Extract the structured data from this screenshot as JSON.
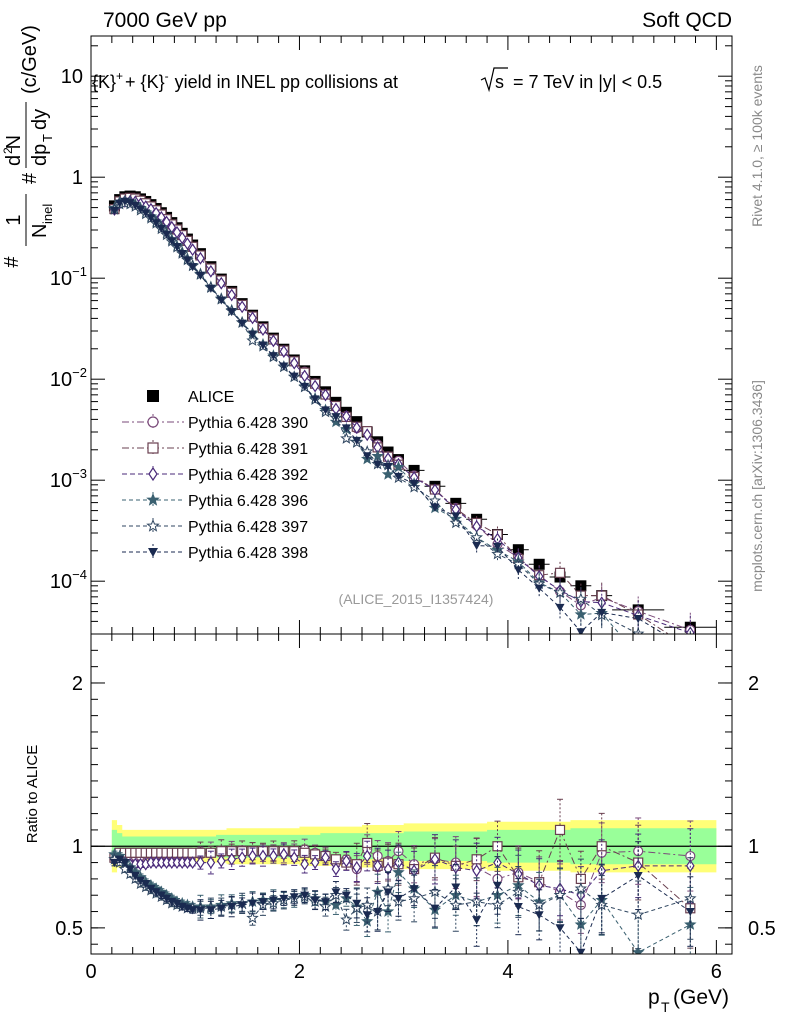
{
  "header": {
    "left_label": "7000 GeV pp",
    "right_label": "Soft QCD"
  },
  "side": {
    "rivet_label": "Rivet 4.1.0, ≥ 100k events",
    "source_label": "mcplots.cern.ch [arXiv:1306.3436]"
  },
  "chart_data": [
    {
      "panel": "main",
      "type": "scatter",
      "title": "{K}+ + {K}- yield in INEL pp collisions at √s = 7 TeV in |y| < 0.5",
      "title_parts": {
        "k1": "{K}",
        "sup1": "+",
        "plus": "+ {K}",
        "sup2": "-",
        "rest": "yield in INEL pp collisions at",
        "sqrt_s": "s",
        "tail": "= 7 TeV in |y| < 0.5"
      },
      "ylabel": "1/N_inel d²N/dp_T dy (c/GeV)",
      "ylabel_parts": {
        "n": "N",
        "inel": "inel",
        "dN": "d N",
        "two": "2",
        "dpt": "dp",
        "T": "T",
        "dy": "dy",
        "units": "(c/GeV)",
        "one": "1",
        "hash": "#"
      },
      "yscale": "log",
      "ylim": [
        3e-05,
        25
      ],
      "yticks": [
        {
          "v": 0.0001,
          "base": "10",
          "exp": "−4"
        },
        {
          "v": 0.001,
          "base": "10",
          "exp": "−3"
        },
        {
          "v": 0.01,
          "base": "10",
          "exp": "−2"
        },
        {
          "v": 0.1,
          "base": "10",
          "exp": "−1"
        },
        {
          "v": 1,
          "base": "1",
          "exp": ""
        },
        {
          "v": 10,
          "base": "10",
          "exp": ""
        }
      ],
      "xlim": [
        0,
        6.15
      ],
      "analysis_tag": "(ALICE_2015_I1357424)",
      "x": [
        0.225,
        0.275,
        0.325,
        0.375,
        0.425,
        0.475,
        0.525,
        0.575,
        0.625,
        0.675,
        0.725,
        0.775,
        0.825,
        0.875,
        0.925,
        0.975,
        1.05,
        1.15,
        1.25,
        1.35,
        1.45,
        1.55,
        1.65,
        1.75,
        1.85,
        1.95,
        2.05,
        2.15,
        2.25,
        2.35,
        2.45,
        2.55,
        2.65,
        2.75,
        2.85,
        2.95,
        3.1,
        3.3,
        3.5,
        3.7,
        3.9,
        4.1,
        4.3,
        4.5,
        4.7,
        4.9,
        5.25,
        5.75
      ],
      "data": {
        "name": "ALICE",
        "color": "#000000",
        "y": [
          0.52,
          0.6,
          0.64,
          0.65,
          0.64,
          0.61,
          0.575,
          0.535,
          0.49,
          0.445,
          0.4,
          0.355,
          0.316,
          0.278,
          0.244,
          0.213,
          0.175,
          0.13,
          0.098,
          0.074,
          0.056,
          0.043,
          0.033,
          0.0255,
          0.0198,
          0.0155,
          0.0121,
          0.0095,
          0.0075,
          0.0059,
          0.0047,
          0.0038,
          0.003,
          0.0024,
          0.0019,
          0.0016,
          0.00125,
          0.00087,
          0.00059,
          0.00041,
          0.00029,
          0.000205,
          0.000147,
          0.00011,
          9e-05,
          7.2e-05,
          5.2e-05,
          3.5e-05
        ]
      },
      "series": [
        {
          "name": "Pythia 6.428 390",
          "color": "#7a4a7a",
          "marker": "circle-open",
          "dash": "7,3,2,3",
          "ratio": [
            0.92,
            0.94,
            0.94,
            0.94,
            0.94,
            0.94,
            0.95,
            0.95,
            0.95,
            0.95,
            0.95,
            0.95,
            0.95,
            0.95,
            0.95,
            0.95,
            0.95,
            0.96,
            0.96,
            0.96,
            0.96,
            0.96,
            0.96,
            0.96,
            0.96,
            0.97,
            0.98,
            0.96,
            0.94,
            0.9,
            0.92,
            0.86,
            0.98,
            0.94,
            0.91,
            0.97,
            0.89,
            0.92,
            0.9,
            0.87,
            0.8,
            0.84,
            0.78,
            0.72,
            0.64,
            0.96,
            0.97,
            0.94
          ]
        },
        {
          "name": "Pythia 6.428 391",
          "color": "#6a4050",
          "marker": "square-open",
          "dash": "7,3,2,3",
          "ratio": [
            0.93,
            0.96,
            0.96,
            0.96,
            0.96,
            0.96,
            0.96,
            0.96,
            0.96,
            0.96,
            0.96,
            0.96,
            0.96,
            0.96,
            0.96,
            0.96,
            0.96,
            0.96,
            0.97,
            0.97,
            0.97,
            0.97,
            0.97,
            0.97,
            0.97,
            0.97,
            0.96,
            0.95,
            0.94,
            0.92,
            0.9,
            0.89,
            1.02,
            0.88,
            0.9,
            0.89,
            0.86,
            0.93,
            0.88,
            0.92,
            1.0,
            0.81,
            0.78,
            1.1,
            0.8,
            1.0,
            0.9,
            0.62
          ]
        },
        {
          "name": "Pythia 6.428 392",
          "color": "#4a2a7a",
          "marker": "diamond-open",
          "dash": "5,3",
          "ratio": [
            0.92,
            0.92,
            0.9,
            0.89,
            0.89,
            0.89,
            0.89,
            0.9,
            0.9,
            0.9,
            0.9,
            0.9,
            0.9,
            0.9,
            0.9,
            0.9,
            0.9,
            0.9,
            0.91,
            0.92,
            0.93,
            0.94,
            0.94,
            0.94,
            0.95,
            0.93,
            0.89,
            0.9,
            0.93,
            0.86,
            0.91,
            0.87,
            0.94,
            0.88,
            0.86,
            0.9,
            0.85,
            0.92,
            0.87,
            0.85,
            0.9,
            0.83,
            0.76,
            0.74,
            0.7,
            0.85,
            0.88,
            0.88
          ]
        },
        {
          "name": "Pythia 6.428 396",
          "color": "#3a6070",
          "marker": "star-filled",
          "dash": "4,3",
          "ratio": [
            0.95,
            0.94,
            0.9,
            0.87,
            0.84,
            0.81,
            0.78,
            0.76,
            0.74,
            0.72,
            0.7,
            0.68,
            0.66,
            0.65,
            0.64,
            0.63,
            0.63,
            0.63,
            0.64,
            0.65,
            0.65,
            0.66,
            0.67,
            0.67,
            0.67,
            0.68,
            0.7,
            0.68,
            0.66,
            0.64,
            0.68,
            0.63,
            0.54,
            0.72,
            0.6,
            0.84,
            0.74,
            0.61,
            0.7,
            0.66,
            0.7,
            0.76,
            0.66,
            0.7,
            0.52,
            0.67,
            0.35,
            0.52
          ]
        },
        {
          "name": "Pythia 6.428 397",
          "color": "#2f4660",
          "marker": "star-open",
          "dash": "4,3",
          "ratio": [
            0.92,
            0.9,
            0.86,
            0.83,
            0.8,
            0.77,
            0.75,
            0.73,
            0.71,
            0.69,
            0.67,
            0.65,
            0.64,
            0.63,
            0.62,
            0.62,
            0.62,
            0.62,
            0.63,
            0.64,
            0.65,
            0.56,
            0.64,
            0.65,
            0.67,
            0.68,
            0.69,
            0.66,
            0.63,
            0.7,
            0.55,
            0.62,
            0.64,
            0.6,
            0.74,
            0.66,
            0.68,
            0.72,
            0.64,
            0.66,
            0.64,
            0.72,
            0.64,
            0.7,
            0.74,
            0.64,
            0.58,
            0.68
          ]
        },
        {
          "name": "Pythia 6.428 398",
          "color": "#1a2a50",
          "marker": "triangle-down-filled",
          "dash": "4,3",
          "ratio": [
            0.9,
            0.92,
            0.9,
            0.86,
            0.82,
            0.79,
            0.77,
            0.74,
            0.72,
            0.7,
            0.68,
            0.66,
            0.65,
            0.63,
            0.62,
            0.61,
            0.61,
            0.61,
            0.62,
            0.63,
            0.64,
            0.65,
            0.66,
            0.67,
            0.68,
            0.69,
            0.7,
            0.67,
            0.66,
            0.72,
            0.7,
            0.65,
            0.58,
            0.6,
            0.72,
            0.68,
            0.74,
            0.62,
            0.75,
            0.55,
            0.76,
            0.63,
            0.58,
            0.5,
            0.35,
            0.68,
            0.82,
            0.6
          ]
        }
      ]
    },
    {
      "panel": "ratio",
      "type": "scatter",
      "ylabel": "Ratio to ALICE",
      "xlabel": "p_T (GeV)",
      "xlabel_parts": {
        "p": "p",
        "T": "T",
        "units": "(GeV)"
      },
      "ylim": [
        0.34,
        2.3
      ],
      "yticks": [
        {
          "v": 0.5,
          "label": "0.5"
        },
        {
          "v": 1,
          "label": "1"
        },
        {
          "v": 2,
          "label": "2"
        }
      ],
      "xticks": [
        {
          "v": 0,
          "label": "0"
        },
        {
          "v": 2,
          "label": "2"
        },
        {
          "v": 4,
          "label": "4"
        },
        {
          "v": 6,
          "label": "6"
        }
      ],
      "band_inner": {
        "color": "#99ff99",
        "half_width": [
          0.1,
          0.08,
          0.06,
          0.06,
          0.06,
          0.06,
          0.06,
          0.06,
          0.06,
          0.06,
          0.06,
          0.06,
          0.06,
          0.06,
          0.06,
          0.06,
          0.06,
          0.06,
          0.07,
          0.07,
          0.07,
          0.07,
          0.07,
          0.07,
          0.07,
          0.07,
          0.07,
          0.07,
          0.08,
          0.08,
          0.08,
          0.08,
          0.08,
          0.08,
          0.08,
          0.08,
          0.09,
          0.09,
          0.09,
          0.09,
          0.1,
          0.1,
          0.1,
          0.1,
          0.11,
          0.11,
          0.11,
          0.11
        ]
      },
      "band_outer": {
        "color": "#ffff77",
        "half_width": [
          0.16,
          0.13,
          0.1,
          0.1,
          0.1,
          0.1,
          0.1,
          0.1,
          0.1,
          0.1,
          0.1,
          0.1,
          0.1,
          0.1,
          0.1,
          0.1,
          0.1,
          0.1,
          0.1,
          0.11,
          0.11,
          0.11,
          0.11,
          0.11,
          0.11,
          0.11,
          0.12,
          0.12,
          0.12,
          0.12,
          0.12,
          0.12,
          0.13,
          0.13,
          0.13,
          0.13,
          0.14,
          0.14,
          0.14,
          0.14,
          0.15,
          0.15,
          0.15,
          0.15,
          0.16,
          0.16,
          0.16,
          0.16
        ]
      }
    }
  ]
}
